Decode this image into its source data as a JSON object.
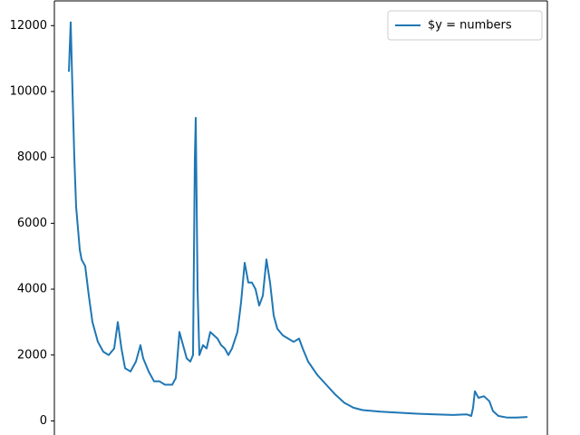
{
  "chart_data": {
    "type": "line",
    "x": [
      0,
      2,
      4,
      6,
      8,
      12,
      14,
      18,
      22,
      26,
      32,
      38,
      44,
      50,
      54,
      58,
      62,
      68,
      74,
      79,
      82,
      88,
      94,
      100,
      106,
      114,
      118,
      122,
      126,
      130,
      134,
      137,
      139,
      140,
      142,
      144,
      148,
      152,
      156,
      160,
      164,
      168,
      172,
      176,
      180,
      186,
      190,
      194,
      198,
      202,
      206,
      210,
      214,
      218,
      222,
      226,
      230,
      236,
      242,
      248,
      254,
      258,
      264,
      274,
      284,
      294,
      304,
      314,
      324,
      344,
      364,
      384,
      404,
      424,
      439,
      444,
      446,
      448,
      452,
      458,
      464,
      468,
      474,
      484,
      494,
      506
    ],
    "series": [
      {
        "name": "$y = numbers",
        "color": "#1f77b4",
        "values": [
          10600,
          12100,
          10000,
          8000,
          6500,
          5200,
          4900,
          4700,
          3800,
          3000,
          2400,
          2100,
          2000,
          2200,
          3000,
          2200,
          1600,
          1500,
          1800,
          2300,
          1900,
          1500,
          1200,
          1200,
          1100,
          1100,
          1300,
          2700,
          2300,
          1900,
          1800,
          2000,
          8000,
          9200,
          4000,
          2000,
          2300,
          2200,
          2700,
          2600,
          2500,
          2300,
          2200,
          2000,
          2200,
          2700,
          3600,
          4800,
          4200,
          4200,
          4000,
          3500,
          3800,
          4900,
          4200,
          3200,
          2800,
          2600,
          2500,
          2400,
          2500,
          2200,
          1800,
          1400,
          1100,
          800,
          550,
          400,
          330,
          280,
          250,
          220,
          200,
          180,
          200,
          150,
          400,
          900,
          700,
          750,
          600,
          300,
          150,
          100,
          100,
          120
        ]
      }
    ],
    "xlim": [
      -16,
      528
    ],
    "ylim": [
      -400,
      12750
    ],
    "yticks": [
      0,
      2000,
      4000,
      6000,
      8000,
      10000,
      12000
    ],
    "legend": "upper right"
  }
}
